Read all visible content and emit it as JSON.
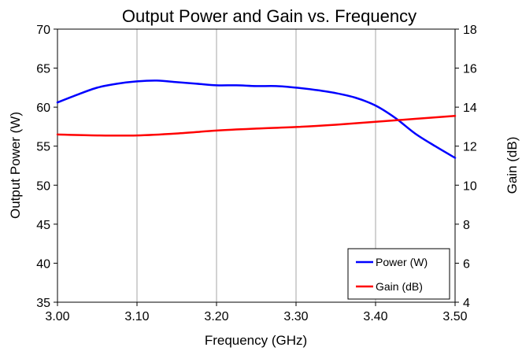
{
  "chart_data": {
    "type": "line",
    "title": "Output Power and Gain vs. Frequency",
    "xlabel": "Frequency (GHz)",
    "ylabel": "Output Power (W)",
    "y2label": "Gain (dB)",
    "xlim": [
      3.0,
      3.5
    ],
    "ylim": [
      35,
      70
    ],
    "y2lim": [
      4,
      18
    ],
    "x_ticks": [
      "3.00",
      "3.10",
      "3.20",
      "3.30",
      "3.40",
      "3.50"
    ],
    "y_ticks": [
      "35",
      "40",
      "45",
      "50",
      "55",
      "60",
      "65",
      "70"
    ],
    "y2_ticks": [
      "4",
      "6",
      "8",
      "10",
      "12",
      "14",
      "16",
      "18"
    ],
    "grid": "vertical",
    "legend_position": "bottom-right",
    "series": [
      {
        "name": "Power (W)",
        "axis": "left",
        "color": "#0000ff",
        "x": [
          3.0,
          3.025,
          3.05,
          3.075,
          3.1,
          3.125,
          3.15,
          3.175,
          3.2,
          3.225,
          3.25,
          3.275,
          3.3,
          3.325,
          3.35,
          3.375,
          3.4,
          3.425,
          3.45,
          3.475,
          3.5
        ],
        "values": [
          60.6,
          61.6,
          62.5,
          63.0,
          63.3,
          63.4,
          63.2,
          63.0,
          62.8,
          62.8,
          62.7,
          62.7,
          62.5,
          62.2,
          61.8,
          61.2,
          60.2,
          58.6,
          56.6,
          55.0,
          53.5
        ]
      },
      {
        "name": "Gain (dB)",
        "axis": "right",
        "color": "#ff0000",
        "x": [
          3.0,
          3.05,
          3.1,
          3.15,
          3.2,
          3.25,
          3.3,
          3.35,
          3.4,
          3.45,
          3.5
        ],
        "values": [
          12.6,
          12.55,
          12.55,
          12.65,
          12.8,
          12.9,
          12.98,
          13.1,
          13.25,
          13.4,
          13.55
        ]
      }
    ]
  }
}
